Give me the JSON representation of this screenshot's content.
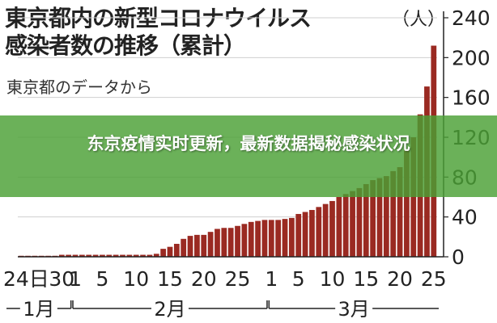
{
  "chart_data": {
    "type": "bar",
    "title": "東京都内の新型コロナウイルス",
    "subtitle": "感染者数の推移（累計）",
    "source": "東京都のデータから",
    "unit_label": "（人）",
    "ylim": [
      0,
      240
    ],
    "y_ticks": [
      0,
      40,
      80,
      120,
      160,
      200,
      240
    ],
    "x_tick_labels": [
      "24日",
      "30",
      "1",
      "5",
      "10",
      "15",
      "20",
      "25",
      "1",
      "5",
      "10",
      "15",
      "20",
      "25"
    ],
    "month_labels": [
      "1月",
      "2月",
      "3月"
    ],
    "categories": [
      "1/24",
      "1/25",
      "1/26",
      "1/27",
      "1/28",
      "1/29",
      "1/30",
      "1/31",
      "2/1",
      "2/2",
      "2/3",
      "2/4",
      "2/5",
      "2/6",
      "2/7",
      "2/8",
      "2/9",
      "2/10",
      "2/11",
      "2/12",
      "2/13",
      "2/14",
      "2/15",
      "2/16",
      "2/17",
      "2/18",
      "2/19",
      "2/20",
      "2/21",
      "2/22",
      "2/23",
      "2/24",
      "2/25",
      "2/26",
      "2/27",
      "2/28",
      "2/29",
      "3/1",
      "3/2",
      "3/3",
      "3/4",
      "3/5",
      "3/6",
      "3/7",
      "3/8",
      "3/9",
      "3/10",
      "3/11",
      "3/12",
      "3/13",
      "3/14",
      "3/15",
      "3/16",
      "3/17",
      "3/18",
      "3/19",
      "3/20",
      "3/21",
      "3/22",
      "3/23",
      "3/24",
      "3/25"
    ],
    "values": [
      1,
      1,
      1,
      1,
      1,
      1,
      2,
      2,
      2,
      2,
      2,
      2,
      2,
      2,
      2,
      2,
      2,
      2,
      2,
      2,
      3,
      8,
      10,
      13,
      18,
      21,
      22,
      22,
      25,
      28,
      29,
      29,
      31,
      33,
      35,
      36,
      37,
      37,
      37,
      38,
      39,
      43,
      45,
      47,
      50,
      53,
      56,
      60,
      63,
      66,
      69,
      73,
      77,
      79,
      81,
      86,
      90,
      108,
      120,
      143,
      171,
      212
    ],
    "bar_color": "#9a2a22",
    "grid": true
  },
  "banner": {
    "text": "东京疫情实时更新，最新数据揭秘感染状况",
    "color": "#4aa034"
  }
}
